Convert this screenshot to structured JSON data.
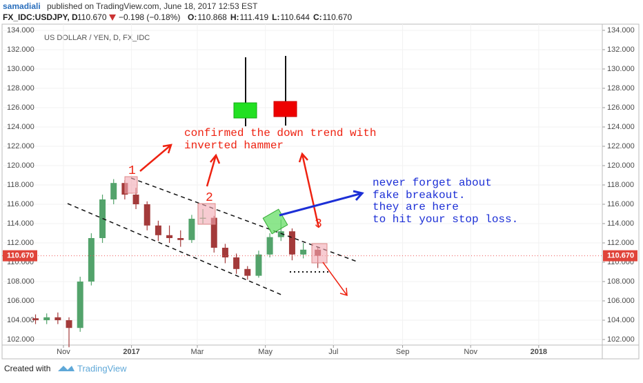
{
  "header": {
    "author": "samadiali",
    "published": "published on TradingView.com, June 18, 2017 12:53 EST",
    "symbol": "FX_IDC:USDJPY, D",
    "price": "110.670",
    "change": "−0.198 (−0.18%)",
    "ohlc": [
      {
        "label": "O:",
        "value": "110.868"
      },
      {
        "label": "H:",
        "value": "111.419"
      },
      {
        "label": "L:",
        "value": "110.644"
      },
      {
        "label": "C:",
        "value": "110.670"
      }
    ]
  },
  "chart_data": {
    "type": "candlestick",
    "title": "US DOLLAR / YEN, D, FX_IDC",
    "x": [
      -25,
      -15,
      -5,
      5,
      15,
      25,
      35,
      45,
      55,
      65,
      75,
      85,
      95,
      105,
      115,
      125,
      135,
      145,
      155,
      165,
      175,
      185,
      195,
      205,
      215,
      228
    ],
    "open": [
      104.2,
      104.0,
      104.3,
      104.0,
      103.2,
      108.0,
      112.5,
      116.5,
      118.2,
      117.0,
      116.0,
      113.8,
      112.8,
      112.5,
      112.3,
      114.5,
      114.6,
      111.5,
      110.5,
      109.3,
      108.6,
      110.8,
      112.6,
      113.2,
      110.8,
      111.3
    ],
    "high": [
      104.6,
      104.7,
      104.8,
      104.3,
      108.5,
      113.0,
      117.0,
      118.6,
      118.5,
      117.7,
      116.3,
      114.3,
      113.8,
      113.3,
      114.9,
      115.5,
      114.8,
      111.9,
      110.9,
      109.6,
      111.2,
      113.0,
      114.4,
      113.5,
      112.0,
      111.6
    ],
    "low": [
      103.6,
      103.6,
      103.6,
      101.2,
      102.8,
      107.6,
      112.0,
      116.0,
      116.5,
      115.5,
      113.3,
      112.2,
      112.0,
      111.6,
      112.0,
      114.0,
      111.0,
      109.9,
      108.8,
      108.2,
      108.4,
      110.5,
      112.2,
      110.2,
      110.4,
      109.4
    ],
    "close": [
      104.0,
      104.3,
      104.0,
      103.2,
      108.0,
      112.5,
      116.5,
      118.2,
      117.0,
      116.0,
      113.8,
      112.8,
      112.5,
      112.3,
      114.5,
      114.6,
      111.5,
      110.5,
      109.3,
      108.6,
      110.8,
      112.6,
      113.2,
      110.8,
      111.3,
      110.67
    ],
    "up_color": "#53a36b",
    "down_color": "#a33a3a",
    "xlim": [
      -55,
      483
    ],
    "ylim": [
      101.43,
      134.64
    ],
    "xticks": [
      {
        "value": 0,
        "label": "Nov"
      },
      {
        "value": 61,
        "label": "2017"
      },
      {
        "value": 120,
        "label": "Mar"
      },
      {
        "value": 181,
        "label": "May"
      },
      {
        "value": 242,
        "label": "Jul"
      },
      {
        "value": 304,
        "label": "Sep"
      },
      {
        "value": 365,
        "label": "Nov"
      },
      {
        "value": 426,
        "label": "2018"
      }
    ],
    "yticks": [
      {
        "value": 102,
        "label": "102.000"
      },
      {
        "value": 104,
        "label": "104.000"
      },
      {
        "value": 106,
        "label": "106.000"
      },
      {
        "value": 108,
        "label": "108.000"
      },
      {
        "value": 110,
        "label": "110.000"
      },
      {
        "value": 112,
        "label": "112.000"
      },
      {
        "value": 114,
        "label": "114.000"
      },
      {
        "value": 116,
        "label": "116.000"
      },
      {
        "value": 118,
        "label": "118.000"
      },
      {
        "value": 120,
        "label": "120.000"
      },
      {
        "value": 122,
        "label": "122.000"
      },
      {
        "value": 124,
        "label": "124.000"
      },
      {
        "value": 126,
        "label": "126.000"
      },
      {
        "value": 128,
        "label": "128.000"
      },
      {
        "value": 130,
        "label": "130.000"
      },
      {
        "value": 132,
        "label": "132.000"
      },
      {
        "value": 134,
        "label": "134.000"
      }
    ],
    "last_price": {
      "value": 110.67,
      "label": "110.670"
    },
    "annotations": [
      "1",
      "2",
      "3",
      "confirmed the down trend with",
      "inverted hammer",
      "never forget about",
      "fake breakout.",
      "they are here",
      "to hit your stop loss."
    ]
  },
  "footer": {
    "created": "Created with",
    "brand": "TradingView"
  }
}
